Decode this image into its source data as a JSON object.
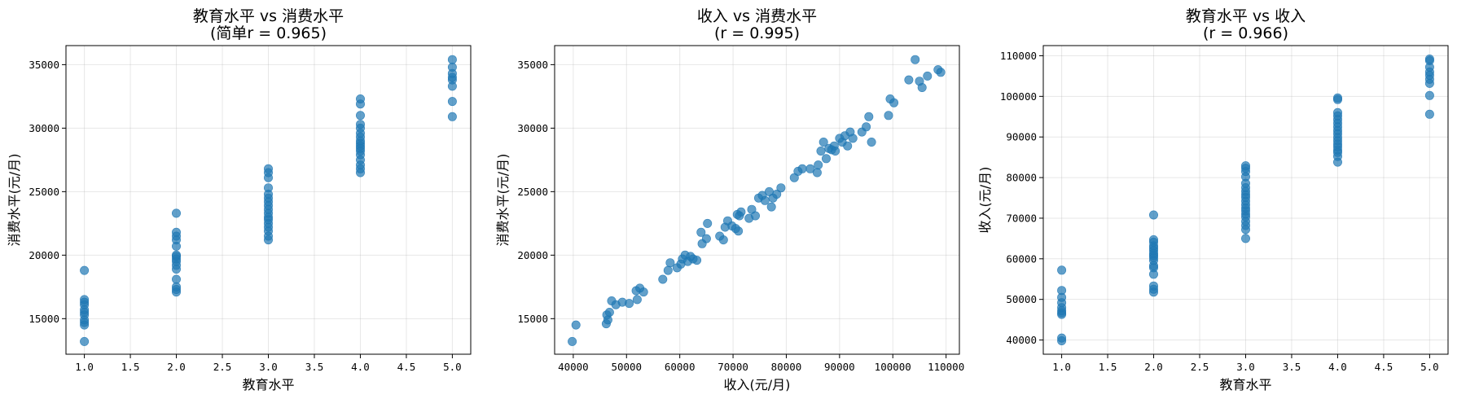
{
  "chart_data": [
    {
      "type": "scatter",
      "title": "教育水平 vs 消费水平",
      "subtitle": "(简单r = 0.965)",
      "xlabel": "教育水平",
      "ylabel": "消费水平(元/月)",
      "xlim": [
        0.8,
        5.2
      ],
      "ylim": [
        12200,
        36500
      ],
      "xticks": [
        1.0,
        1.5,
        2.0,
        2.5,
        3.0,
        3.5,
        4.0,
        4.5,
        5.0
      ],
      "xtick_labels": [
        "1.0",
        "1.5",
        "2.0",
        "2.5",
        "3.0",
        "3.5",
        "4.0",
        "4.5",
        "5.0"
      ],
      "yticks": [
        15000,
        20000,
        25000,
        30000,
        35000
      ],
      "ytick_labels": [
        "15000",
        "20000",
        "25000",
        "30000",
        "35000"
      ],
      "grid": true,
      "color": "#1f77b4",
      "points": [
        [
          1,
          13200
        ],
        [
          1,
          14500
        ],
        [
          1,
          14700
        ],
        [
          1,
          14900
        ],
        [
          1,
          15300
        ],
        [
          1,
          15500
        ],
        [
          1,
          15700
        ],
        [
          1,
          16100
        ],
        [
          1,
          16300
        ],
        [
          1,
          16500
        ],
        [
          1,
          18800
        ],
        [
          2,
          17100
        ],
        [
          2,
          17300
        ],
        [
          2,
          17500
        ],
        [
          2,
          18100
        ],
        [
          2,
          18900
        ],
        [
          2,
          19200
        ],
        [
          2,
          19500
        ],
        [
          2,
          19700
        ],
        [
          2,
          19900
        ],
        [
          2,
          20000
        ],
        [
          2,
          20700
        ],
        [
          2,
          21200
        ],
        [
          2,
          21500
        ],
        [
          2,
          21800
        ],
        [
          2,
          23300
        ],
        [
          3,
          21200
        ],
        [
          3,
          21500
        ],
        [
          3,
          21900
        ],
        [
          3,
          22200
        ],
        [
          3,
          22500
        ],
        [
          3,
          22800
        ],
        [
          3,
          23000
        ],
        [
          3,
          23300
        ],
        [
          3,
          23600
        ],
        [
          3,
          23900
        ],
        [
          3,
          24200
        ],
        [
          3,
          24500
        ],
        [
          3,
          24800
        ],
        [
          3,
          25300
        ],
        [
          3,
          26100
        ],
        [
          3,
          26500
        ],
        [
          3,
          26800
        ],
        [
          4,
          26500
        ],
        [
          4,
          26800
        ],
        [
          4,
          27100
        ],
        [
          4,
          27500
        ],
        [
          4,
          27900
        ],
        [
          4,
          28200
        ],
        [
          4,
          28400
        ],
        [
          4,
          28600
        ],
        [
          4,
          28800
        ],
        [
          4,
          29000
        ],
        [
          4,
          29300
        ],
        [
          4,
          29600
        ],
        [
          4,
          30000
        ],
        [
          4,
          30300
        ],
        [
          4,
          31000
        ],
        [
          4,
          31900
        ],
        [
          4,
          32300
        ],
        [
          5,
          30900
        ],
        [
          5,
          32100
        ],
        [
          5,
          33300
        ],
        [
          5,
          33800
        ],
        [
          5,
          34000
        ],
        [
          5,
          34300
        ],
        [
          5,
          34800
        ],
        [
          5,
          35400
        ]
      ]
    },
    {
      "type": "scatter",
      "title": "收入 vs 消费水平",
      "subtitle": "(r = 0.995)",
      "xlabel": "收入(元/月)",
      "ylabel": "消费水平(元/月)",
      "xlim": [
        36500,
        112500
      ],
      "ylim": [
        12200,
        36500
      ],
      "xticks": [
        40000,
        50000,
        60000,
        70000,
        80000,
        90000,
        100000,
        110000
      ],
      "xtick_labels": [
        "40000",
        "50000",
        "60000",
        "70000",
        "80000",
        "90000",
        "100000",
        "110000"
      ],
      "yticks": [
        15000,
        20000,
        25000,
        30000,
        35000
      ],
      "ytick_labels": [
        "15000",
        "20000",
        "25000",
        "30000",
        "35000"
      ],
      "grid": true,
      "color": "#1f77b4",
      "points": [
        [
          39800,
          13200
        ],
        [
          40500,
          14500
        ],
        [
          46200,
          14600
        ],
        [
          46500,
          14900
        ],
        [
          46300,
          15300
        ],
        [
          46800,
          15500
        ],
        [
          47200,
          16400
        ],
        [
          48000,
          16100
        ],
        [
          49200,
          16300
        ],
        [
          50500,
          16200
        ],
        [
          52000,
          16500
        ],
        [
          51800,
          17200
        ],
        [
          52500,
          17400
        ],
        [
          53200,
          17100
        ],
        [
          56800,
          18100
        ],
        [
          57800,
          18800
        ],
        [
          58200,
          19400
        ],
        [
          59500,
          19000
        ],
        [
          60200,
          19300
        ],
        [
          60500,
          19700
        ],
        [
          61000,
          20000
        ],
        [
          61500,
          19500
        ],
        [
          62000,
          19900
        ],
        [
          62500,
          19700
        ],
        [
          63200,
          19600
        ],
        [
          64200,
          20900
        ],
        [
          64000,
          21800
        ],
        [
          65000,
          21300
        ],
        [
          65200,
          22500
        ],
        [
          67500,
          21500
        ],
        [
          68200,
          21200
        ],
        [
          68500,
          22200
        ],
        [
          69000,
          22700
        ],
        [
          69800,
          22300
        ],
        [
          70500,
          22100
        ],
        [
          71000,
          21900
        ],
        [
          70800,
          23200
        ],
        [
          71500,
          23400
        ],
        [
          71200,
          23100
        ],
        [
          73000,
          22900
        ],
        [
          73500,
          23600
        ],
        [
          74200,
          23100
        ],
        [
          74800,
          24500
        ],
        [
          75500,
          24700
        ],
        [
          76000,
          24300
        ],
        [
          76800,
          25000
        ],
        [
          77200,
          23800
        ],
        [
          77500,
          24500
        ],
        [
          78200,
          24800
        ],
        [
          79000,
          25300
        ],
        [
          81500,
          26100
        ],
        [
          82200,
          26600
        ],
        [
          83000,
          26800
        ],
        [
          84500,
          26800
        ],
        [
          85800,
          26500
        ],
        [
          86000,
          27100
        ],
        [
          86500,
          28200
        ],
        [
          87000,
          28900
        ],
        [
          87500,
          27600
        ],
        [
          88000,
          28400
        ],
        [
          88500,
          28300
        ],
        [
          89000,
          28600
        ],
        [
          89200,
          28200
        ],
        [
          90000,
          29200
        ],
        [
          90500,
          28900
        ],
        [
          91000,
          29400
        ],
        [
          91500,
          28600
        ],
        [
          92000,
          29700
        ],
        [
          92500,
          29200
        ],
        [
          94200,
          29700
        ],
        [
          95000,
          30100
        ],
        [
          95500,
          30900
        ],
        [
          96000,
          28900
        ],
        [
          99200,
          31000
        ],
        [
          99500,
          32300
        ],
        [
          100200,
          32000
        ],
        [
          103000,
          33800
        ],
        [
          104200,
          35400
        ],
        [
          105000,
          33700
        ],
        [
          105500,
          33200
        ],
        [
          106500,
          34100
        ],
        [
          108500,
          34600
        ],
        [
          109000,
          34400
        ]
      ]
    },
    {
      "type": "scatter",
      "title": "教育水平 vs 收入",
      "subtitle": "(r = 0.966)",
      "xlabel": "教育水平",
      "ylabel": "收入(元/月)",
      "xlim": [
        0.8,
        5.2
      ],
      "ylim": [
        36500,
        112500
      ],
      "xticks": [
        1.0,
        1.5,
        2.0,
        2.5,
        3.0,
        3.5,
        4.0,
        4.5,
        5.0
      ],
      "xtick_labels": [
        "1.0",
        "1.5",
        "2.0",
        "2.5",
        "3.0",
        "3.5",
        "4.0",
        "4.5",
        "5.0"
      ],
      "yticks": [
        40000,
        50000,
        60000,
        70000,
        80000,
        90000,
        100000,
        110000
      ],
      "ytick_labels": [
        "40000",
        "50000",
        "60000",
        "70000",
        "80000",
        "90000",
        "100000",
        "110000"
      ],
      "grid": true,
      "color": "#1f77b4",
      "points": [
        [
          1,
          39800
        ],
        [
          1,
          40500
        ],
        [
          1,
          46300
        ],
        [
          1,
          46700
        ],
        [
          1,
          47200
        ],
        [
          1,
          48000
        ],
        [
          1,
          49200
        ],
        [
          1,
          50500
        ],
        [
          1,
          52200
        ],
        [
          1,
          57200
        ],
        [
          2,
          51800
        ],
        [
          2,
          52500
        ],
        [
          2,
          53300
        ],
        [
          2,
          56200
        ],
        [
          2,
          57800
        ],
        [
          2,
          58300
        ],
        [
          2,
          59600
        ],
        [
          2,
          60300
        ],
        [
          2,
          60800
        ],
        [
          2,
          61300
        ],
        [
          2,
          62000
        ],
        [
          2,
          62600
        ],
        [
          2,
          63200
        ],
        [
          2,
          64100
        ],
        [
          2,
          64700
        ],
        [
          2,
          70800
        ],
        [
          3,
          65000
        ],
        [
          3,
          67200
        ],
        [
          3,
          68200
        ],
        [
          3,
          69200
        ],
        [
          3,
          70300
        ],
        [
          3,
          71000
        ],
        [
          3,
          71800
        ],
        [
          3,
          72500
        ],
        [
          3,
          73300
        ],
        [
          3,
          74200
        ],
        [
          3,
          75100
        ],
        [
          3,
          75800
        ],
        [
          3,
          76600
        ],
        [
          3,
          77500
        ],
        [
          3,
          78600
        ],
        [
          3,
          80200
        ],
        [
          3,
          81500
        ],
        [
          3,
          82300
        ],
        [
          3,
          82900
        ],
        [
          4,
          83800
        ],
        [
          4,
          85200
        ],
        [
          4,
          86200
        ],
        [
          4,
          86800
        ],
        [
          4,
          87600
        ],
        [
          4,
          88300
        ],
        [
          4,
          89100
        ],
        [
          4,
          89900
        ],
        [
          4,
          90800
        ],
        [
          4,
          91600
        ],
        [
          4,
          92500
        ],
        [
          4,
          93400
        ],
        [
          4,
          94300
        ],
        [
          4,
          95200
        ],
        [
          4,
          96000
        ],
        [
          4,
          99200
        ],
        [
          4,
          99600
        ],
        [
          5,
          95600
        ],
        [
          5,
          100200
        ],
        [
          5,
          103200
        ],
        [
          5,
          104200
        ],
        [
          5,
          105200
        ],
        [
          5,
          106000
        ],
        [
          5,
          107200
        ],
        [
          5,
          108800
        ],
        [
          5,
          109200
        ]
      ]
    }
  ]
}
